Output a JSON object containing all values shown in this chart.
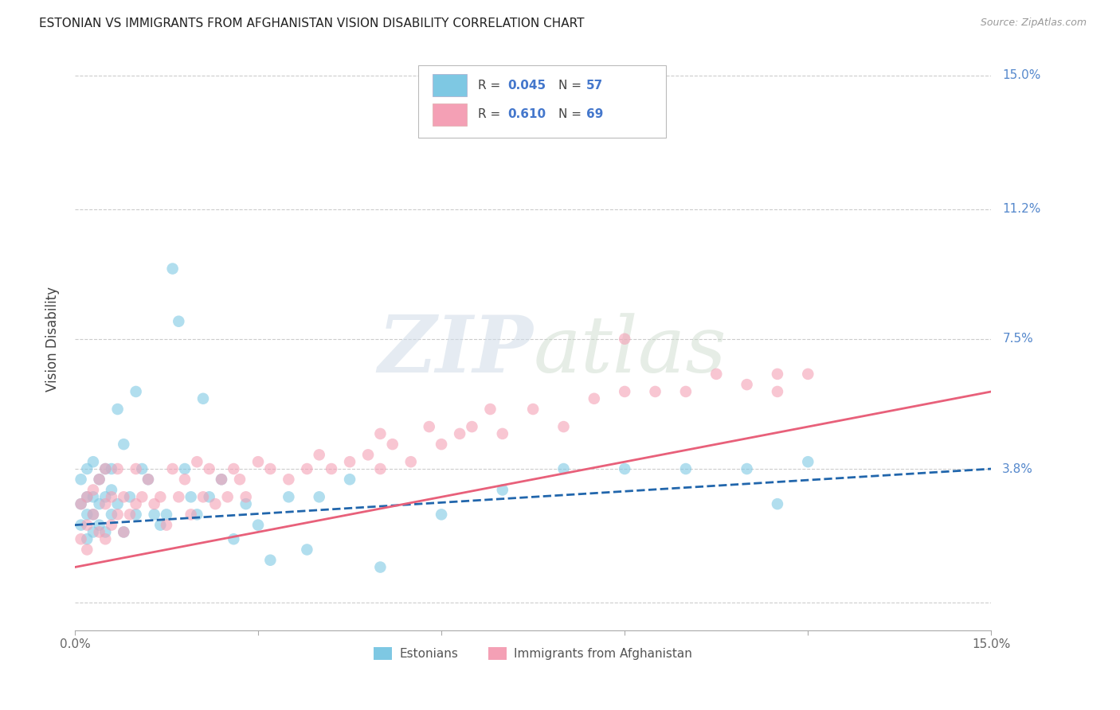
{
  "title": "ESTONIAN VS IMMIGRANTS FROM AFGHANISTAN VISION DISABILITY CORRELATION CHART",
  "source": "Source: ZipAtlas.com",
  "ylabel": "Vision Disability",
  "R_estonian": 0.045,
  "N_estonian": 57,
  "R_afghan": 0.61,
  "N_afghan": 69,
  "color_estonian": "#7ec8e3",
  "color_afghan": "#f4a0b5",
  "color_estonian_line": "#2166ac",
  "color_afghan_line": "#e8607a",
  "legend_label_1": "Estonians",
  "legend_label_2": "Immigrants from Afghanistan",
  "xlim": [
    0.0,
    0.15
  ],
  "ylim": [
    -0.008,
    0.158
  ],
  "ytick_vals": [
    0.0,
    0.038,
    0.075,
    0.112,
    0.15
  ],
  "ytick_labels": [
    "",
    "3.8%",
    "7.5%",
    "11.2%",
    "15.0%"
  ],
  "xtick_vals": [
    0.0,
    0.03,
    0.06,
    0.09,
    0.12,
    0.15
  ],
  "xtick_labels": [
    "0.0%",
    "",
    "",
    "",
    "",
    "15.0%"
  ],
  "est_x": [
    0.001,
    0.001,
    0.001,
    0.002,
    0.002,
    0.002,
    0.002,
    0.003,
    0.003,
    0.003,
    0.003,
    0.004,
    0.004,
    0.004,
    0.005,
    0.005,
    0.005,
    0.006,
    0.006,
    0.006,
    0.007,
    0.007,
    0.008,
    0.008,
    0.009,
    0.01,
    0.01,
    0.011,
    0.012,
    0.013,
    0.014,
    0.015,
    0.016,
    0.017,
    0.018,
    0.019,
    0.02,
    0.021,
    0.022,
    0.024,
    0.026,
    0.028,
    0.03,
    0.032,
    0.035,
    0.038,
    0.04,
    0.045,
    0.05,
    0.06,
    0.07,
    0.08,
    0.09,
    0.1,
    0.11,
    0.115,
    0.12
  ],
  "est_y": [
    0.022,
    0.028,
    0.035,
    0.018,
    0.025,
    0.03,
    0.038,
    0.02,
    0.025,
    0.03,
    0.04,
    0.022,
    0.028,
    0.035,
    0.02,
    0.03,
    0.038,
    0.025,
    0.032,
    0.038,
    0.028,
    0.055,
    0.02,
    0.045,
    0.03,
    0.025,
    0.06,
    0.038,
    0.035,
    0.025,
    0.022,
    0.025,
    0.095,
    0.08,
    0.038,
    0.03,
    0.025,
    0.058,
    0.03,
    0.035,
    0.018,
    0.028,
    0.022,
    0.012,
    0.03,
    0.015,
    0.03,
    0.035,
    0.01,
    0.025,
    0.032,
    0.038,
    0.038,
    0.038,
    0.038,
    0.028,
    0.04
  ],
  "afg_x": [
    0.001,
    0.001,
    0.002,
    0.002,
    0.002,
    0.003,
    0.003,
    0.004,
    0.004,
    0.005,
    0.005,
    0.005,
    0.006,
    0.006,
    0.007,
    0.007,
    0.008,
    0.008,
    0.009,
    0.01,
    0.01,
    0.011,
    0.012,
    0.013,
    0.014,
    0.015,
    0.016,
    0.017,
    0.018,
    0.019,
    0.02,
    0.021,
    0.022,
    0.023,
    0.024,
    0.025,
    0.026,
    0.027,
    0.028,
    0.03,
    0.032,
    0.035,
    0.038,
    0.04,
    0.042,
    0.045,
    0.048,
    0.05,
    0.052,
    0.055,
    0.058,
    0.06,
    0.063,
    0.065,
    0.068,
    0.07,
    0.075,
    0.08,
    0.085,
    0.09,
    0.095,
    0.1,
    0.105,
    0.11,
    0.115,
    0.12,
    0.09,
    0.115,
    0.05
  ],
  "afg_y": [
    0.018,
    0.028,
    0.022,
    0.03,
    0.015,
    0.025,
    0.032,
    0.02,
    0.035,
    0.018,
    0.028,
    0.038,
    0.022,
    0.03,
    0.025,
    0.038,
    0.03,
    0.02,
    0.025,
    0.028,
    0.038,
    0.03,
    0.035,
    0.028,
    0.03,
    0.022,
    0.038,
    0.03,
    0.035,
    0.025,
    0.04,
    0.03,
    0.038,
    0.028,
    0.035,
    0.03,
    0.038,
    0.035,
    0.03,
    0.04,
    0.038,
    0.035,
    0.038,
    0.042,
    0.038,
    0.04,
    0.042,
    0.038,
    0.045,
    0.04,
    0.05,
    0.045,
    0.048,
    0.05,
    0.055,
    0.048,
    0.055,
    0.05,
    0.058,
    0.075,
    0.06,
    0.06,
    0.065,
    0.062,
    0.065,
    0.065,
    0.06,
    0.06,
    0.048
  ]
}
